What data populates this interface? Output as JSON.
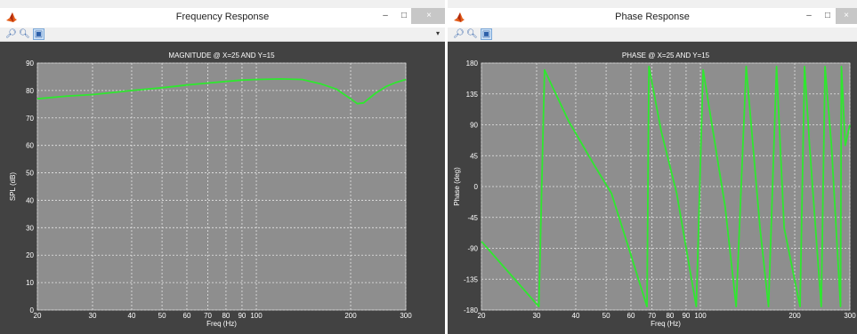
{
  "windows": [
    {
      "title": "Frequency Response",
      "controls": {
        "minimize": "–",
        "maximize": "□",
        "close": "×"
      },
      "toolbar": [
        {
          "icon": "zoom-in-icon"
        },
        {
          "icon": "zoom-out-icon"
        },
        {
          "icon": "data-cursor-icon",
          "active": true
        }
      ],
      "dock_arrow": "▾"
    },
    {
      "title": "Phase Response",
      "controls": {
        "minimize": "–",
        "maximize": "□",
        "close": "×"
      },
      "toolbar": [
        {
          "icon": "zoom-in-icon"
        },
        {
          "icon": "zoom-out-icon"
        },
        {
          "icon": "data-cursor-icon",
          "active": true
        }
      ]
    }
  ],
  "colors": {
    "figure_bg": "#424242",
    "axes_bg": "#8e8e8e",
    "grid": "#e6e6e6",
    "trace": "#2ee82e",
    "text": "#ffffff"
  },
  "chart_data": [
    {
      "type": "line",
      "title": "MAGNITUDE @ X=25 AND Y=15",
      "xlabel": "Freq (Hz)",
      "ylabel": "SPL (dB)",
      "xscale": "log",
      "xlim": [
        20,
        300
      ],
      "ylim": [
        0,
        90
      ],
      "xticks": [
        20,
        30,
        40,
        50,
        60,
        70,
        80,
        90,
        100,
        200,
        300
      ],
      "yticks": [
        0,
        10,
        20,
        30,
        40,
        50,
        60,
        70,
        80,
        90
      ],
      "grid": true,
      "series": [
        {
          "x": [
            20,
            25,
            30,
            40,
            50,
            60,
            70,
            80,
            90,
            100,
            120,
            140,
            160,
            180,
            200,
            210,
            220,
            240,
            260,
            280,
            300
          ],
          "y": [
            77,
            78,
            78.5,
            80,
            81,
            82,
            82.7,
            83.3,
            83.8,
            84,
            84.2,
            84,
            82.5,
            80.5,
            77,
            75.2,
            75.5,
            79,
            81.5,
            83,
            84
          ]
        }
      ]
    },
    {
      "type": "line",
      "title": "PHASE @ X=25 AND Y=15",
      "xlabel": "Freq (Hz)",
      "ylabel": "Phase (deg)",
      "xscale": "log",
      "xlim": [
        20,
        300
      ],
      "ylim": [
        -180,
        180
      ],
      "xticks": [
        20,
        30,
        40,
        50,
        60,
        70,
        80,
        90,
        100,
        200,
        300
      ],
      "yticks": [
        -180,
        -135,
        -90,
        -45,
        0,
        45,
        90,
        135,
        180
      ],
      "grid": true,
      "series": [
        {
          "x": [
            20,
            30.5,
            31.8,
            38,
            46,
            52,
            60,
            67.5,
            68.5,
            75,
            84,
            97,
            102,
            120,
            130,
            140,
            155,
            165,
            175,
            185,
            208,
            215,
            223,
            243,
            250,
            262,
            280,
            282,
            290,
            300
          ],
          "y": [
            -80,
            -175,
            170,
            95,
            30,
            -10,
            -100,
            -175,
            175,
            80,
            -10,
            -175,
            170,
            -30,
            -175,
            175,
            -60,
            -175,
            175,
            -60,
            -175,
            175,
            60,
            -175,
            175,
            60,
            -175,
            175,
            60,
            90
          ]
        }
      ]
    }
  ]
}
